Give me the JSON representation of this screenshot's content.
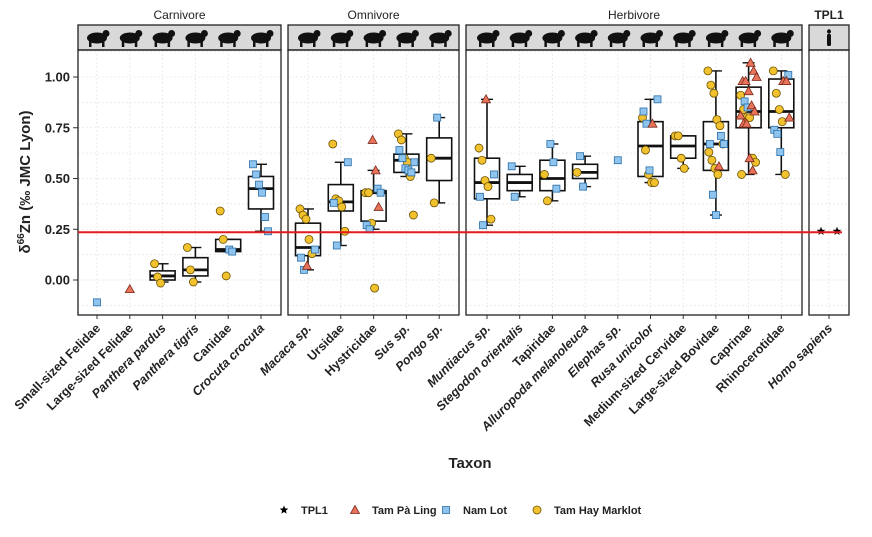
{
  "chart_data": {
    "type": "boxplot",
    "xlabel": "Taxon",
    "ylabel": "δ66Zn (‰ JMC Lyon)",
    "ylabel_parts": {
      "delta": "δ",
      "sup": "66",
      "rest": "Zn (‰ JMC Lyon)"
    },
    "ylim": [
      -0.17,
      1.15
    ],
    "yticks": [
      "0.00",
      "0.25",
      "0.50",
      "0.75",
      "1.00"
    ],
    "grid": true,
    "reference_line": {
      "value": 0.235,
      "color": "#E41A1C"
    },
    "legend": {
      "placement": "bottom",
      "entries": [
        {
          "key": "TPL",
          "label": "TPL1",
          "shape": "star",
          "color": "#000000"
        },
        {
          "key": "TPaL",
          "label": "Tam Pà Ling",
          "shape": "triangle",
          "color": "#E8735A"
        },
        {
          "key": "NL",
          "label": "Nam Lot",
          "shape": "square",
          "color": "#8EC4EE"
        },
        {
          "key": "THM",
          "label": "Tam Hay Marklot",
          "shape": "circle",
          "color": "#F2C12E"
        }
      ]
    },
    "panels": [
      {
        "name": "Carnivore",
        "categories": [
          {
            "name": "Small-sized Felidae",
            "italic": false,
            "icon": "small-felid-silhouette-icon",
            "box": null,
            "NL": [
              -0.11
            ]
          },
          {
            "name": "Large-sized Felidae",
            "italic": false,
            "icon": "large-felid-silhouette-icon",
            "box": null,
            "TPaL": [
              -0.045
            ]
          },
          {
            "name": "Panthera pardus",
            "italic": true,
            "icon": "leopard-silhouette-icon",
            "box": [
              -0.01,
              0.0,
              0.02,
              0.045,
              0.08
            ],
            "THM": [
              0.08,
              0.015,
              -0.015
            ]
          },
          {
            "name": "Panthera tigris",
            "italic": true,
            "icon": "tiger-silhouette-icon",
            "box": [
              -0.01,
              0.02,
              0.05,
              0.11,
              0.16
            ],
            "THM": [
              0.16,
              0.05,
              -0.01
            ]
          },
          {
            "name": "Canidae",
            "italic": false,
            "icon": "canid-silhouette-icon",
            "box": [
              0.14,
              0.14,
              0.15,
              0.2,
              0.2
            ],
            "THM": [
              0.34,
              0.2,
              0.02
            ],
            "NL": [
              0.15,
              0.14
            ]
          },
          {
            "name": "Crocuta crocuta",
            "italic": true,
            "icon": "hyena-silhouette-icon",
            "box": [
              0.24,
              0.35,
              0.45,
              0.51,
              0.57
            ],
            "NL": [
              0.57,
              0.52,
              0.47,
              0.43,
              0.31,
              0.24
            ]
          }
        ]
      },
      {
        "name": "Omnivore",
        "categories": [
          {
            "name": "Macaca sp.",
            "italic": true,
            "icon": "macaque-silhouette-icon",
            "box": [
              0.05,
              0.12,
              0.16,
              0.28,
              0.35
            ],
            "THM": [
              0.35,
              0.32,
              0.3,
              0.2,
              0.13
            ],
            "NL": [
              0.15,
              0.11,
              0.05
            ],
            "TPaL": [
              0.07
            ]
          },
          {
            "name": "Ursidae",
            "italic": false,
            "icon": "bear-silhouette-icon",
            "box": [
              0.17,
              0.34,
              0.385,
              0.47,
              0.58
            ],
            "THM": [
              0.67,
              0.4,
              0.39,
              0.36,
              0.24
            ],
            "NL": [
              0.58,
              0.38,
              0.17
            ]
          },
          {
            "name": "Hystricidae",
            "italic": false,
            "icon": "porcupine-silhouette-icon",
            "box": [
              0.25,
              0.29,
              0.43,
              0.44,
              0.54
            ],
            "TPaL": [
              0.69,
              0.54,
              0.36
            ],
            "THM": [
              0.43,
              0.43,
              0.28,
              -0.04
            ],
            "NL": [
              0.45,
              0.43,
              0.27,
              0.25
            ]
          },
          {
            "name": "Sus sp.",
            "italic": true,
            "icon": "pig-silhouette-icon",
            "box": [
              0.51,
              0.53,
              0.59,
              0.62,
              0.72
            ],
            "THM": [
              0.72,
              0.69,
              0.6,
              0.58,
              0.51,
              0.32
            ],
            "NL": [
              0.64,
              0.6,
              0.55,
              0.54,
              0.53,
              0.58
            ]
          },
          {
            "name": "Pongo sp.",
            "italic": true,
            "icon": "orangutan-silhouette-icon",
            "box": [
              0.38,
              0.49,
              0.6,
              0.7,
              0.8
            ],
            "NL": [
              0.8
            ],
            "THM": [
              0.6,
              0.38
            ]
          }
        ]
      },
      {
        "name": "Herbivore",
        "categories": [
          {
            "name": "Muntiacus sp.",
            "italic": true,
            "icon": "muntjac-silhouette-icon",
            "box": [
              0.27,
              0.4,
              0.48,
              0.6,
              0.89
            ],
            "TPaL": [
              0.89
            ],
            "THM": [
              0.65,
              0.59,
              0.49,
              0.46,
              0.3
            ],
            "NL": [
              0.52,
              0.41,
              0.27
            ]
          },
          {
            "name": "Stegodon orientalis",
            "italic": true,
            "icon": "stegodon-silhouette-icon",
            "box": [
              0.41,
              0.44,
              0.48,
              0.52,
              0.56
            ],
            "NL": [
              0.56,
              0.41
            ]
          },
          {
            "name": "Tapiridae",
            "italic": false,
            "icon": "tapir-silhouette-icon",
            "box": [
              0.39,
              0.44,
              0.5,
              0.59,
              0.67
            ],
            "NL": [
              0.67,
              0.58,
              0.45
            ],
            "THM": [
              0.52,
              0.39
            ]
          },
          {
            "name": "Alluropoda melanoleuca",
            "italic": true,
            "icon": "panda-silhouette-icon",
            "box": [
              0.46,
              0.5,
              0.53,
              0.57,
              0.61
            ],
            "NL": [
              0.61,
              0.46
            ],
            "THM": [
              0.53
            ]
          },
          {
            "name": "Elephas sp.",
            "italic": true,
            "icon": "elephant-silhouette-icon",
            "box": null,
            "NL": [
              0.59
            ]
          },
          {
            "name": "Rusa unicolor",
            "italic": true,
            "icon": "sambar-silhouette-icon",
            "box": [
              0.48,
              0.51,
              0.66,
              0.78,
              0.89
            ],
            "NL": [
              0.89,
              0.83,
              0.77,
              0.54
            ],
            "TPaL": [
              0.77
            ],
            "THM": [
              0.8,
              0.64,
              0.52,
              0.48,
              0.48
            ]
          },
          {
            "name": "Medium-sized Cervidae",
            "italic": false,
            "icon": "deer-silhouette-icon",
            "box": [
              0.55,
              0.6,
              0.66,
              0.71,
              0.71
            ],
            "THM": [
              0.71,
              0.71,
              0.6,
              0.55
            ]
          },
          {
            "name": "Large-sized Bovidae",
            "italic": false,
            "icon": "bovid-silhouette-icon",
            "box": [
              0.32,
              0.54,
              0.67,
              0.78,
              1.03
            ],
            "THM": [
              1.03,
              0.96,
              0.92,
              0.79,
              0.76,
              0.67,
              0.63,
              0.59,
              0.55,
              0.52
            ],
            "NL": [
              0.71,
              0.67,
              0.67,
              0.42,
              0.32
            ],
            "TPaL": [
              0.56
            ]
          },
          {
            "name": "Caprinae",
            "italic": false,
            "icon": "goat-silhouette-icon",
            "box": [
              0.52,
              0.75,
              0.83,
              0.95,
              1.07
            ],
            "TPaL": [
              1.07,
              1.03,
              1.0,
              0.98,
              0.98,
              0.93,
              0.86,
              0.83,
              0.81,
              0.77,
              0.77,
              0.6,
              0.54
            ],
            "THM": [
              0.91,
              0.84,
              0.8,
              0.8,
              0.6,
              0.58,
              0.52
            ],
            "NL": [
              0.88,
              0.85
            ]
          },
          {
            "name": "Rhinocerotidae",
            "italic": false,
            "icon": "rhino-silhouette-icon",
            "box": [
              0.52,
              0.75,
              0.83,
              0.99,
              1.03
            ],
            "THM": [
              1.03,
              0.92,
              0.84,
              0.78,
              0.52
            ],
            "NL": [
              1.01,
              0.74,
              0.72,
              0.63
            ],
            "TPaL": [
              0.98,
              0.98,
              0.8
            ]
          }
        ]
      },
      {
        "name": "TPL1",
        "categories": [
          {
            "name": "Homo sapiens",
            "italic": true,
            "icon": "human-silhouette-icon",
            "box": null,
            "TPL": [
              0.24,
              0.24
            ]
          }
        ]
      }
    ]
  }
}
